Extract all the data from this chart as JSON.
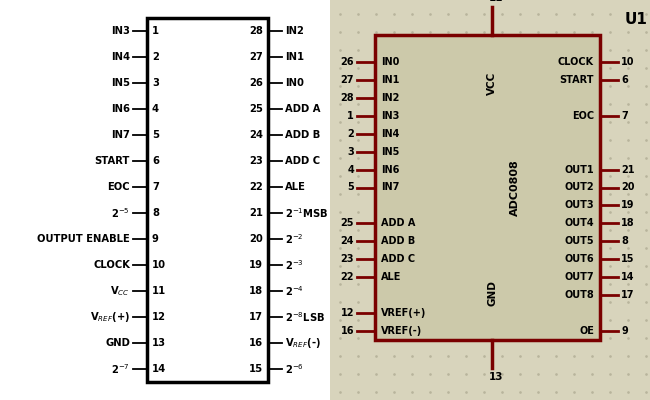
{
  "left_ic": {
    "left_pins": [
      {
        "num": "1",
        "label": "IN3"
      },
      {
        "num": "2",
        "label": "IN4"
      },
      {
        "num": "3",
        "label": "IN5"
      },
      {
        "num": "4",
        "label": "IN6"
      },
      {
        "num": "5",
        "label": "IN7"
      },
      {
        "num": "6",
        "label": "START"
      },
      {
        "num": "7",
        "label": "EOC"
      },
      {
        "num": "8",
        "label": "2$^{-5}$"
      },
      {
        "num": "9",
        "label": "OUTPUT ENABLE"
      },
      {
        "num": "10",
        "label": "CLOCK"
      },
      {
        "num": "11",
        "label": "V$_{CC}$"
      },
      {
        "num": "12",
        "label": "V$_{REF}$(+)"
      },
      {
        "num": "13",
        "label": "GND"
      },
      {
        "num": "14",
        "label": "2$^{-7}$"
      }
    ],
    "right_pins": [
      {
        "num": "28",
        "label": "IN2"
      },
      {
        "num": "27",
        "label": "IN1"
      },
      {
        "num": "26",
        "label": "IN0"
      },
      {
        "num": "25",
        "label": "ADD A"
      },
      {
        "num": "24",
        "label": "ADD B"
      },
      {
        "num": "23",
        "label": "ADD C"
      },
      {
        "num": "22",
        "label": "ALE"
      },
      {
        "num": "21",
        "label": "2$^{-1}$MSB"
      },
      {
        "num": "20",
        "label": "2$^{-2}$"
      },
      {
        "num": "19",
        "label": "2$^{-3}$"
      },
      {
        "num": "18",
        "label": "2$^{-4}$"
      },
      {
        "num": "17",
        "label": "2$^{-8}$LSB"
      },
      {
        "num": "16",
        "label": "V$_{REF}$(-)"
      },
      {
        "num": "15",
        "label": "2$^{-6}$"
      }
    ]
  },
  "right_ic": {
    "bg_color": "#ccc9aa",
    "border_color": "#7a0000",
    "label": "ADC0808",
    "title": "U1",
    "left_pins": [
      {
        "num": "26",
        "label": "IN0"
      },
      {
        "num": "27",
        "label": "IN1"
      },
      {
        "num": "28",
        "label": "IN2"
      },
      {
        "num": "1",
        "label": "IN3"
      },
      {
        "num": "2",
        "label": "IN4"
      },
      {
        "num": "3",
        "label": "IN5"
      },
      {
        "num": "4",
        "label": "IN6"
      },
      {
        "num": "5",
        "label": "IN7"
      },
      {
        "num": "25",
        "label": "ADD A"
      },
      {
        "num": "24",
        "label": "ADD B"
      },
      {
        "num": "23",
        "label": "ADD C"
      },
      {
        "num": "22",
        "label": "ALE"
      },
      {
        "num": "12",
        "label": "VREF(+)"
      },
      {
        "num": "16",
        "label": "VREF(-)"
      }
    ],
    "right_pins": [
      {
        "num": "10",
        "label": "CLOCK"
      },
      {
        "num": "6",
        "label": "START"
      },
      {
        "num": "7",
        "label": "EOC"
      },
      {
        "num": "21",
        "label": "OUT1"
      },
      {
        "num": "20",
        "label": "OUT2"
      },
      {
        "num": "19",
        "label": "OUT3"
      },
      {
        "num": "18",
        "label": "OUT4"
      },
      {
        "num": "8",
        "label": "OUT5"
      },
      {
        "num": "15",
        "label": "OUT6"
      },
      {
        "num": "14",
        "label": "OUT7"
      },
      {
        "num": "17",
        "label": "OUT8"
      },
      {
        "num": "9",
        "label": "OE"
      }
    ]
  }
}
